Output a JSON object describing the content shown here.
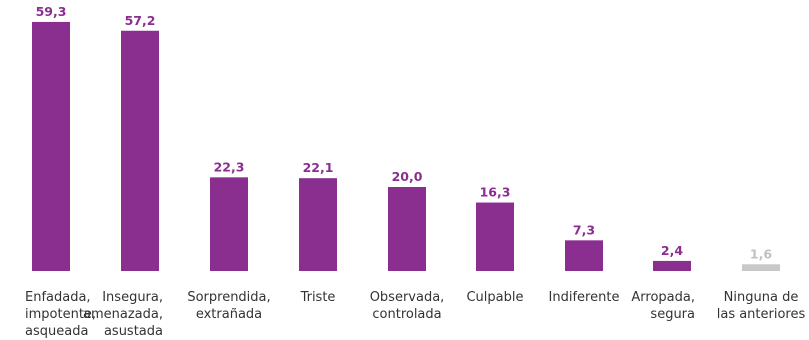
{
  "chart_data": {
    "type": "bar",
    "title": "",
    "xlabel": "",
    "ylabel": "",
    "ylim": [
      0,
      60
    ],
    "grid": false,
    "legend": "none",
    "categories": [
      [
        "Enfadada,",
        "impotente,",
        "asqueada"
      ],
      [
        "Insegura,",
        "amenazada,",
        "asustada"
      ],
      [
        "Sorprendida,",
        "extrañada"
      ],
      [
        "Triste"
      ],
      [
        "Observada,",
        "controlada"
      ],
      [
        "Culpable"
      ],
      [
        "Indiferente"
      ],
      [
        "Arropada,",
        "segura"
      ],
      [
        "Ninguna de",
        "las anteriores"
      ]
    ],
    "values": [
      59.3,
      57.2,
      22.3,
      22.1,
      20.0,
      16.3,
      7.3,
      2.4,
      1.6
    ],
    "value_labels": [
      "59,3",
      "57,2",
      "22,3",
      "22,1",
      "20,0",
      "16,3",
      "7,3",
      "2,4",
      "1,6"
    ],
    "colors": [
      "#8a2e90",
      "#8a2e90",
      "#8a2e90",
      "#8a2e90",
      "#8a2e90",
      "#8a2e90",
      "#8a2e90",
      "#8a2e90",
      "#c8c8c8"
    ],
    "label_colors": [
      "#8a2e90",
      "#8a2e90",
      "#8a2e90",
      "#8a2e90",
      "#8a2e90",
      "#8a2e90",
      "#8a2e90",
      "#8a2e90",
      "#c0c0c0"
    ]
  }
}
